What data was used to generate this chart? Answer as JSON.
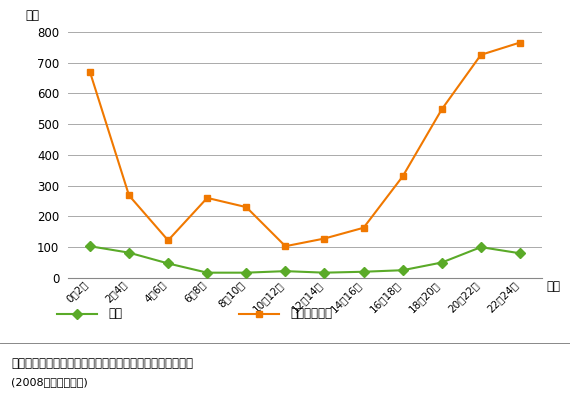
{
  "time_labels": [
    "0～2時",
    "2～4時",
    "4～6時",
    "6～8時",
    "8～10時",
    "10～12時",
    "12～14時",
    "14～16時",
    "16～18時",
    "18～20時",
    "20～22時",
    "22～24時"
  ],
  "rape_values": [
    103,
    82,
    47,
    17,
    17,
    22,
    17,
    20,
    25,
    50,
    100,
    80
  ],
  "indecency_values": [
    670,
    268,
    122,
    260,
    230,
    103,
    128,
    163,
    330,
    548,
    725,
    765
  ],
  "rape_color": "#5aaa28",
  "indecency_color": "#f07800",
  "rape_label": "強妦",
  "indecency_label": "強制わいせつ",
  "ylabel": "件数",
  "xlabel": "時間",
  "ylim": [
    0,
    800
  ],
  "yticks": [
    0,
    100,
    200,
    300,
    400,
    500,
    600,
    700,
    800
  ],
  "title": "街頭における強妦・強制わいせつの発生時間帯別認知件数",
  "subtitle": "(2008年警察庁調べ)",
  "background_color": "#ffffff",
  "grid_color": "#aaaaaa",
  "rape_marker": "D",
  "indecency_marker": "s"
}
